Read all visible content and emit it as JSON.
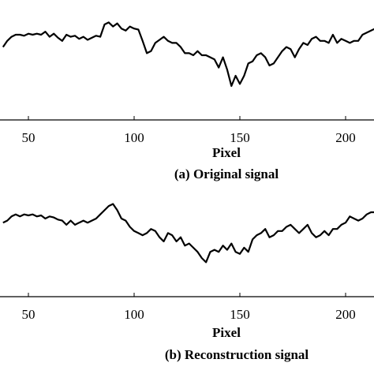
{
  "chart_data": [
    {
      "type": "line",
      "caption": "(a) Original signal",
      "xlabel": "Pixel",
      "xticks": [
        50,
        100,
        150,
        200
      ],
      "xlim": [
        38,
        215
      ],
      "ylim": [
        0,
        1
      ],
      "series": [
        {
          "x": [
            38,
            40,
            42,
            44,
            46,
            48,
            50,
            52,
            54,
            56,
            58,
            60,
            62,
            64,
            66,
            68,
            70,
            72,
            74,
            76,
            78,
            80,
            82,
            84,
            86,
            88,
            90,
            92,
            94,
            96,
            98,
            100,
            102,
            104,
            106,
            108,
            110,
            112,
            114,
            116,
            118,
            120,
            122,
            124,
            126,
            128,
            130,
            132,
            134,
            136,
            138,
            140,
            142,
            144,
            146,
            148,
            150,
            152,
            154,
            156,
            158,
            160,
            162,
            164,
            166,
            168,
            170,
            172,
            174,
            176,
            178,
            180,
            182,
            184,
            186,
            188,
            190,
            192,
            194,
            196,
            198,
            200,
            202,
            204,
            206,
            208,
            210,
            212,
            214
          ],
          "y": [
            0.68,
            0.74,
            0.78,
            0.8,
            0.8,
            0.79,
            0.81,
            0.8,
            0.81,
            0.8,
            0.83,
            0.78,
            0.81,
            0.77,
            0.74,
            0.8,
            0.78,
            0.79,
            0.76,
            0.78,
            0.75,
            0.77,
            0.79,
            0.78,
            0.9,
            0.92,
            0.88,
            0.91,
            0.86,
            0.84,
            0.88,
            0.86,
            0.85,
            0.74,
            0.62,
            0.64,
            0.72,
            0.75,
            0.78,
            0.74,
            0.72,
            0.72,
            0.68,
            0.62,
            0.62,
            0.6,
            0.64,
            0.6,
            0.6,
            0.58,
            0.56,
            0.48,
            0.58,
            0.46,
            0.3,
            0.4,
            0.32,
            0.4,
            0.52,
            0.54,
            0.6,
            0.62,
            0.58,
            0.5,
            0.52,
            0.58,
            0.64,
            0.68,
            0.66,
            0.58,
            0.66,
            0.72,
            0.7,
            0.76,
            0.78,
            0.74,
            0.74,
            0.72,
            0.8,
            0.72,
            0.76,
            0.74,
            0.72,
            0.74,
            0.74,
            0.8,
            0.82,
            0.84,
            0.86
          ]
        }
      ]
    },
    {
      "type": "line",
      "caption": "(b) Reconstruction signal",
      "xlabel": "Pixel",
      "xticks": [
        50,
        100,
        150,
        200
      ],
      "xlim": [
        38,
        215
      ],
      "ylim": [
        0,
        1
      ],
      "series": [
        {
          "x": [
            38,
            40,
            42,
            44,
            46,
            48,
            50,
            52,
            54,
            56,
            58,
            60,
            62,
            64,
            66,
            68,
            70,
            72,
            74,
            76,
            78,
            80,
            82,
            84,
            86,
            88,
            90,
            92,
            94,
            96,
            98,
            100,
            102,
            104,
            106,
            108,
            110,
            112,
            114,
            116,
            118,
            120,
            122,
            124,
            126,
            128,
            130,
            132,
            134,
            136,
            138,
            140,
            142,
            144,
            146,
            148,
            150,
            152,
            154,
            156,
            158,
            160,
            162,
            164,
            166,
            168,
            170,
            172,
            174,
            176,
            178,
            180,
            182,
            184,
            186,
            188,
            190,
            192,
            194,
            196,
            198,
            200,
            202,
            204,
            206,
            208,
            210,
            212,
            214
          ],
          "y": [
            0.68,
            0.7,
            0.74,
            0.76,
            0.74,
            0.76,
            0.75,
            0.76,
            0.74,
            0.75,
            0.72,
            0.74,
            0.73,
            0.71,
            0.7,
            0.66,
            0.7,
            0.66,
            0.68,
            0.7,
            0.68,
            0.7,
            0.72,
            0.76,
            0.8,
            0.84,
            0.86,
            0.8,
            0.72,
            0.7,
            0.64,
            0.6,
            0.58,
            0.56,
            0.58,
            0.62,
            0.6,
            0.54,
            0.5,
            0.58,
            0.56,
            0.5,
            0.54,
            0.46,
            0.48,
            0.44,
            0.4,
            0.34,
            0.3,
            0.4,
            0.42,
            0.4,
            0.46,
            0.42,
            0.48,
            0.4,
            0.38,
            0.44,
            0.4,
            0.52,
            0.56,
            0.58,
            0.62,
            0.54,
            0.56,
            0.6,
            0.6,
            0.64,
            0.66,
            0.62,
            0.58,
            0.62,
            0.66,
            0.58,
            0.54,
            0.56,
            0.6,
            0.56,
            0.62,
            0.62,
            0.66,
            0.68,
            0.74,
            0.72,
            0.7,
            0.72,
            0.76,
            0.78,
            0.78
          ]
        }
      ]
    }
  ]
}
